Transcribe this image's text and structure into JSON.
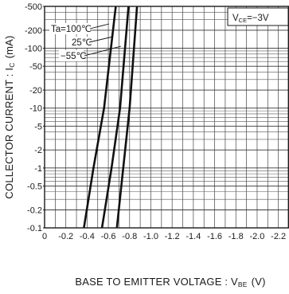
{
  "chart_data": {
    "type": "line",
    "title": "",
    "xlabel": "BASE TO EMITTER VOLTAGE : V",
    "xlabel_sub": "BE",
    "xlabel_unit": "(V)",
    "ylabel": "COLLECTOR CURRENT : I",
    "ylabel_sub": "C",
    "ylabel_unit": "(mA)",
    "x_scale": "linear",
    "y_scale": "log",
    "xlim": [
      0,
      -2.3
    ],
    "ylim": [
      -0.1,
      -500
    ],
    "grid": true,
    "x_ticks": [
      0,
      -0.2,
      -0.4,
      -0.6,
      -0.8,
      -1.0,
      -1.2,
      -1.4,
      -1.6,
      -1.8,
      -2.0,
      -2.2
    ],
    "x_tick_labels": [
      "0",
      "-0.2",
      "-0.4",
      "-0.6",
      "-0.8",
      "-1.0",
      "-1.2",
      "-1.4",
      "-1.6",
      "-1.8",
      "-2.0",
      "-2.2"
    ],
    "y_ticks": [
      -0.1,
      -0.2,
      -0.5,
      -1,
      -2,
      -5,
      -10,
      -20,
      -50,
      -100,
      -200,
      -500
    ],
    "y_tick_labels": [
      "-0.1",
      "-0.2",
      "-0.5",
      "-1",
      "-2",
      "-5",
      "-10",
      "-20",
      "-50",
      "-100",
      "-200",
      "-500"
    ],
    "condition_label": "V",
    "condition_sub": "CE",
    "condition_value": "=−3V",
    "series": [
      {
        "name": "Ta=100℃",
        "x": [
          -0.37,
          -0.46,
          -0.56,
          -0.67
        ],
        "y": [
          -0.1,
          -1,
          -10,
          -500
        ]
      },
      {
        "name": "25℃",
        "x": [
          -0.54,
          -0.63,
          -0.71,
          -0.79
        ],
        "y": [
          -0.1,
          -1,
          -10,
          -500
        ]
      },
      {
        "name": "−55℃",
        "x": [
          -0.68,
          -0.74,
          -0.8,
          -0.87
        ],
        "y": [
          -0.1,
          -1,
          -10,
          -500
        ]
      }
    ]
  }
}
